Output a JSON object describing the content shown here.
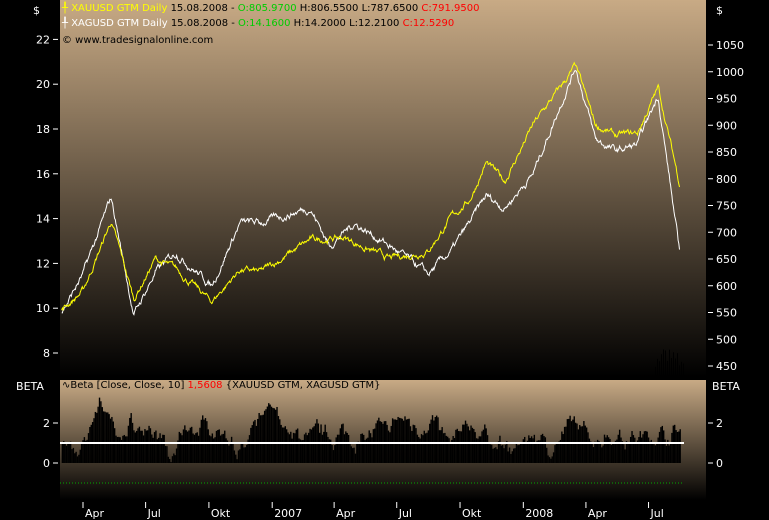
{
  "legend": {
    "gold": {
      "name": "XAUUSD GTM Daily",
      "date": "15.08.2008 -",
      "open": "O:805.9700",
      "high": "H:806.5500",
      "low": "L:787.6500",
      "close": "C:791.9500"
    },
    "silver": {
      "name": "XAGUSD GTM Daily",
      "date": "15.08.2008 -",
      "open": "O:14.1600",
      "high": "H:14.2000",
      "low": "L:12.2100",
      "close": "C:12.5290"
    },
    "copyright": "© www.tradesignalonline.com"
  },
  "beta_legend": {
    "label": "Beta [Close, Close, 10]",
    "value": "1,5608",
    "symbols": "{XAUUSD GTM, XAGUSD GTM}"
  },
  "colors": {
    "gold": "#ffff00",
    "silver": "#ffffff",
    "bg_top": "#c8aa85",
    "beta_ref": "#00aa00"
  },
  "chart_data": [
    {
      "type": "line",
      "title": "",
      "left_axis": {
        "label": "$",
        "ticks": [
          8,
          10,
          12,
          14,
          16,
          18,
          20,
          22
        ]
      },
      "right_axis": {
        "label": "$",
        "ticks": [
          450,
          500,
          550,
          600,
          650,
          700,
          750,
          800,
          850,
          900,
          950,
          1000,
          1050
        ]
      },
      "x_ticks": [
        "Apr",
        "Jul",
        "Okt",
        "2007",
        "Apr",
        "Jul",
        "Okt",
        "2008",
        "Apr",
        "Jul"
      ],
      "series": [
        {
          "name": "XAUUSD GTM Daily",
          "axis": "right",
          "points": [
            [
              "2006-03-01",
              555
            ],
            [
              "2006-04-01",
              590
            ],
            [
              "2006-05-12",
              720
            ],
            [
              "2006-06-14",
              575
            ],
            [
              "2006-07-15",
              650
            ],
            [
              "2006-08-15",
              630
            ],
            [
              "2006-10-05",
              570
            ],
            [
              "2006-11-15",
              630
            ],
            [
              "2006-12-15",
              625
            ],
            [
              "2007-02-25",
              685
            ],
            [
              "2007-04-15",
              690
            ],
            [
              "2007-06-20",
              650
            ],
            [
              "2007-08-15",
              665
            ],
            [
              "2007-09-20",
              730
            ],
            [
              "2007-10-15",
              760
            ],
            [
              "2007-11-08",
              830
            ],
            [
              "2007-12-05",
              795
            ],
            [
              "2008-01-15",
              900
            ],
            [
              "2008-03-17",
              1010
            ],
            [
              "2008-04-15",
              900
            ],
            [
              "2008-05-15",
              880
            ],
            [
              "2008-06-15",
              885
            ],
            [
              "2008-07-15",
              970
            ],
            [
              "2008-08-15",
              792
            ]
          ]
        },
        {
          "name": "XAGUSD GTM Daily",
          "axis": "left",
          "points": [
            [
              "2006-03-01",
              9.8
            ],
            [
              "2006-04-01",
              11.5
            ],
            [
              "2006-05-12",
              14.9
            ],
            [
              "2006-06-14",
              9.7
            ],
            [
              "2006-07-15",
              11.6
            ],
            [
              "2006-08-15",
              12.5
            ],
            [
              "2006-10-05",
              11.0
            ],
            [
              "2006-11-15",
              13.8
            ],
            [
              "2006-12-15",
              13.8
            ],
            [
              "2007-02-25",
              14.5
            ],
            [
              "2007-03-25",
              12.8
            ],
            [
              "2007-05-01",
              13.8
            ],
            [
              "2007-06-20",
              12.8
            ],
            [
              "2007-08-16",
              11.5
            ],
            [
              "2007-09-20",
              12.6
            ],
            [
              "2007-10-15",
              13.8
            ],
            [
              "2007-11-08",
              15.0
            ],
            [
              "2007-12-05",
              14.5
            ],
            [
              "2008-01-15",
              16.0
            ],
            [
              "2008-03-17",
              20.8
            ],
            [
              "2008-04-15",
              17.5
            ],
            [
              "2008-05-15",
              17.0
            ],
            [
              "2008-06-15",
              17.3
            ],
            [
              "2008-07-15",
              19.5
            ],
            [
              "2008-08-15",
              12.5
            ]
          ]
        }
      ]
    },
    {
      "type": "area",
      "title": "",
      "axis_label": "BETA",
      "ticks": [
        0,
        2
      ],
      "reference_lines": [
        1,
        -1
      ],
      "series": [
        {
          "name": "Beta [Close, Close, 10]",
          "points": [
            [
              "2006-03-01",
              1.3
            ],
            [
              "2006-03-25",
              0.1
            ],
            [
              "2006-04-10",
              1.6
            ],
            [
              "2006-04-25",
              3.3
            ],
            [
              "2006-05-20",
              1.2
            ],
            [
              "2006-06-10",
              1.9
            ],
            [
              "2006-07-20",
              1.5
            ],
            [
              "2006-08-05",
              -0.2
            ],
            [
              "2006-08-25",
              1.5
            ],
            [
              "2006-10-01",
              1.9
            ],
            [
              "2006-11-01",
              1.3
            ],
            [
              "2006-11-20",
              0.5
            ],
            [
              "2006-12-10",
              1.8
            ],
            [
              "2007-01-01",
              2.7
            ],
            [
              "2007-02-01",
              1.3
            ],
            [
              "2007-03-15",
              1.5
            ],
            [
              "2007-05-01",
              1.3
            ],
            [
              "2007-06-15",
              1.6
            ],
            [
              "2007-07-05",
              2.2
            ],
            [
              "2007-08-01",
              1.8
            ],
            [
              "2007-08-20",
              2.2
            ],
            [
              "2007-09-15",
              0.9
            ],
            [
              "2007-10-15",
              1.9
            ],
            [
              "2007-11-15",
              1.1
            ],
            [
              "2007-12-20",
              0.6
            ],
            [
              "2008-01-15",
              1.5
            ],
            [
              "2008-02-10",
              0.8
            ],
            [
              "2008-03-15",
              1.9
            ],
            [
              "2008-04-10",
              1.3
            ],
            [
              "2008-05-15",
              1.5
            ],
            [
              "2008-06-15",
              1.2
            ],
            [
              "2008-07-15",
              1.4
            ],
            [
              "2008-08-15",
              1.56
            ]
          ]
        }
      ]
    }
  ]
}
